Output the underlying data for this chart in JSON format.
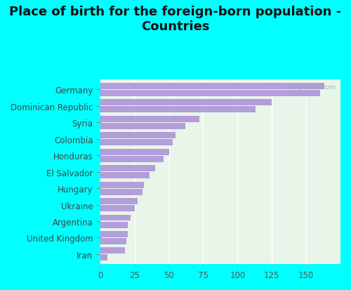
{
  "title": "Place of birth for the foreign-born population -\nCountries",
  "categories": [
    "Germany",
    "Dominican Republic",
    "Syria",
    "Colombia",
    "Honduras",
    "El Salvador",
    "Hungary",
    "Ukraine",
    "Argentina",
    "United Kingdom",
    "Iran"
  ],
  "values1": [
    163,
    125,
    72,
    55,
    50,
    40,
    32,
    27,
    22,
    20,
    18
  ],
  "values2": [
    160,
    113,
    62,
    53,
    46,
    36,
    31,
    25,
    20,
    19,
    5
  ],
  "bar_color": "#b39ddb",
  "bg_color": "#00ffff",
  "plot_bg": "#e8f5e9",
  "watermark": "City-Data.com",
  "xlim": [
    0,
    175
  ],
  "xticks": [
    0,
    25,
    50,
    75,
    100,
    125,
    150
  ],
  "title_fontsize": 13,
  "label_fontsize": 8.5,
  "tick_fontsize": 8.5
}
